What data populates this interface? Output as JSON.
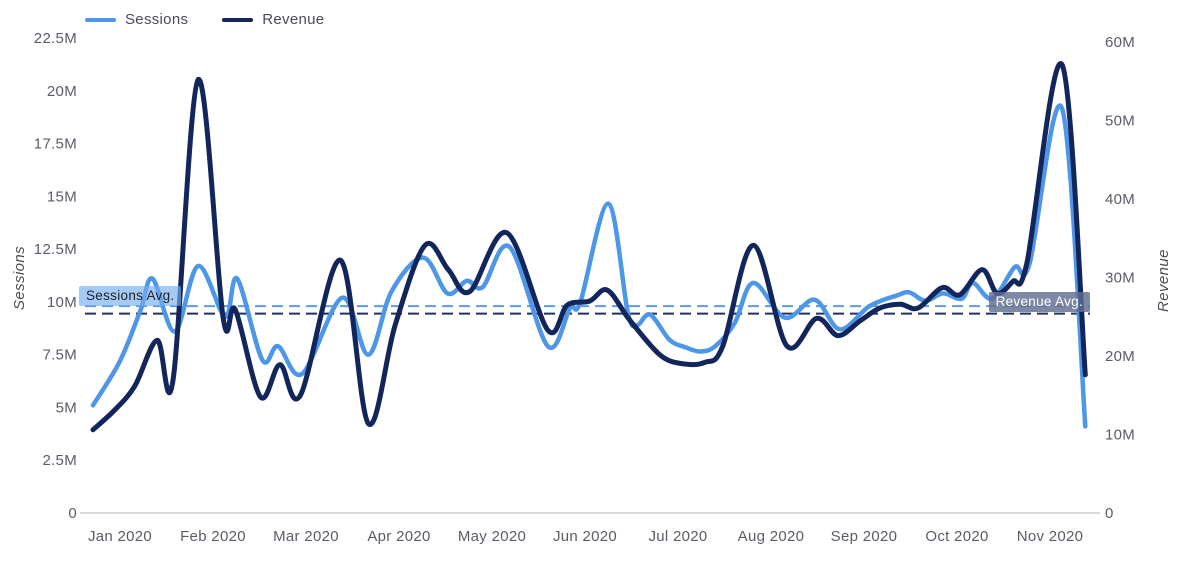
{
  "annotations": {
    "sessions_avg_label": "Sessions Avg.",
    "revenue_avg_label": "Revenue Avg."
  },
  "chart_data": {
    "type": "line",
    "title": "",
    "x_axis": {
      "labels": [
        "Jan 2020",
        "Feb 2020",
        "Mar 2020",
        "Apr 2020",
        "May 2020",
        "Jun 2020",
        "Jul 2020",
        "Aug 2020",
        "Sep 2020",
        "Oct 2020",
        "Nov 2020"
      ],
      "t_unit": "months offset from Jan 2020 tick"
    },
    "left_axis": {
      "title": "Sessions",
      "unit": "M",
      "max": 22.5,
      "ticks": [
        {
          "label": "0",
          "v": 0
        },
        {
          "label": "2.5M",
          "v": 2.5
        },
        {
          "label": "5M",
          "v": 5
        },
        {
          "label": "7.5M",
          "v": 7.5
        },
        {
          "label": "10M",
          "v": 10
        },
        {
          "label": "12.5M",
          "v": 12.5
        },
        {
          "label": "15M",
          "v": 15
        },
        {
          "label": "17.5M",
          "v": 17.5
        },
        {
          "label": "20M",
          "v": 20
        },
        {
          "label": "22.5M",
          "v": 22.5
        }
      ]
    },
    "right_axis": {
      "title": "Revenue",
      "unit": "M",
      "max": 60,
      "ticks": [
        {
          "label": "0",
          "v": 0
        },
        {
          "label": "10M",
          "v": 10
        },
        {
          "label": "20M",
          "v": 20
        },
        {
          "label": "30M",
          "v": 30
        },
        {
          "label": "40M",
          "v": 40
        },
        {
          "label": "50M",
          "v": 50
        },
        {
          "label": "60M",
          "v": 60
        }
      ]
    },
    "averages": {
      "sessions_avg_m": 9.8,
      "revenue_avg_m": 25.4
    },
    "colors": {
      "sessions": "#4D96E8",
      "revenue": "#13265C",
      "sessions_avg_line": "#5B9BE6",
      "revenue_avg_line": "#1C3263",
      "axis_text": "#5B5B66",
      "baseline": "#D9D9DE"
    },
    "legend_position": "top-left",
    "grid": false,
    "series": [
      {
        "name": "Sessions",
        "axis": "left",
        "unit": "millions of sessions",
        "points": [
          {
            "t": -0.29,
            "v": 5.1
          },
          {
            "t": 0.0,
            "v": 7.2
          },
          {
            "t": 0.22,
            "v": 9.6
          },
          {
            "t": 0.35,
            "v": 11.1
          },
          {
            "t": 0.59,
            "v": 8.6
          },
          {
            "t": 0.84,
            "v": 11.7
          },
          {
            "t": 1.13,
            "v": 9.3
          },
          {
            "t": 1.26,
            "v": 11.1
          },
          {
            "t": 1.53,
            "v": 7.25
          },
          {
            "t": 1.7,
            "v": 7.9
          },
          {
            "t": 1.96,
            "v": 6.6
          },
          {
            "t": 2.39,
            "v": 10.2
          },
          {
            "t": 2.67,
            "v": 7.5
          },
          {
            "t": 2.92,
            "v": 10.5
          },
          {
            "t": 3.26,
            "v": 12.1
          },
          {
            "t": 3.52,
            "v": 10.4
          },
          {
            "t": 3.73,
            "v": 11.0
          },
          {
            "t": 3.9,
            "v": 10.7
          },
          {
            "t": 4.19,
            "v": 12.6
          },
          {
            "t": 4.6,
            "v": 7.9
          },
          {
            "t": 4.84,
            "v": 9.7
          },
          {
            "t": 4.95,
            "v": 10.0
          },
          {
            "t": 5.25,
            "v": 14.65
          },
          {
            "t": 5.46,
            "v": 9.5
          },
          {
            "t": 5.56,
            "v": 8.9
          },
          {
            "t": 5.7,
            "v": 9.4
          },
          {
            "t": 5.91,
            "v": 8.2
          },
          {
            "t": 6.08,
            "v": 7.85
          },
          {
            "t": 6.24,
            "v": 7.65
          },
          {
            "t": 6.4,
            "v": 7.9
          },
          {
            "t": 6.61,
            "v": 9.0
          },
          {
            "t": 6.81,
            "v": 10.9
          },
          {
            "t": 7.15,
            "v": 9.25
          },
          {
            "t": 7.47,
            "v": 10.1
          },
          {
            "t": 7.74,
            "v": 8.7
          },
          {
            "t": 8.06,
            "v": 9.8
          },
          {
            "t": 8.35,
            "v": 10.3
          },
          {
            "t": 8.49,
            "v": 10.45
          },
          {
            "t": 8.66,
            "v": 10.05
          },
          {
            "t": 8.85,
            "v": 10.4
          },
          {
            "t": 9.05,
            "v": 10.15
          },
          {
            "t": 9.17,
            "v": 10.9
          },
          {
            "t": 9.38,
            "v": 10.15
          },
          {
            "t": 9.62,
            "v": 11.65
          },
          {
            "t": 9.78,
            "v": 11.8
          },
          {
            "t": 10.13,
            "v": 19.15
          },
          {
            "t": 10.38,
            "v": 4.1
          }
        ]
      },
      {
        "name": "Revenue",
        "axis": "right",
        "unit": "millions of revenue",
        "points": [
          {
            "t": -0.29,
            "v": 10.6
          },
          {
            "t": -0.05,
            "v": 13.2
          },
          {
            "t": 0.16,
            "v": 16.2
          },
          {
            "t": 0.4,
            "v": 22.0
          },
          {
            "t": 0.57,
            "v": 16.9
          },
          {
            "t": 0.84,
            "v": 55.2
          },
          {
            "t": 1.11,
            "v": 24.8
          },
          {
            "t": 1.24,
            "v": 25.9
          },
          {
            "t": 1.51,
            "v": 14.8
          },
          {
            "t": 1.72,
            "v": 18.9
          },
          {
            "t": 1.94,
            "v": 15.0
          },
          {
            "t": 2.37,
            "v": 32.2
          },
          {
            "t": 2.67,
            "v": 11.4
          },
          {
            "t": 2.96,
            "v": 24.0
          },
          {
            "t": 3.28,
            "v": 34.1
          },
          {
            "t": 3.53,
            "v": 31.0
          },
          {
            "t": 3.76,
            "v": 28.2
          },
          {
            "t": 4.16,
            "v": 35.7
          },
          {
            "t": 4.6,
            "v": 23.3
          },
          {
            "t": 4.81,
            "v": 26.5
          },
          {
            "t": 5.05,
            "v": 27.0
          },
          {
            "t": 5.24,
            "v": 28.4
          },
          {
            "t": 5.48,
            "v": 24.6
          },
          {
            "t": 5.81,
            "v": 20.1
          },
          {
            "t": 6.06,
            "v": 19.0
          },
          {
            "t": 6.29,
            "v": 19.2
          },
          {
            "t": 6.48,
            "v": 21.2
          },
          {
            "t": 6.81,
            "v": 34.1
          },
          {
            "t": 7.17,
            "v": 21.3
          },
          {
            "t": 7.49,
            "v": 24.8
          },
          {
            "t": 7.72,
            "v": 22.6
          },
          {
            "t": 7.96,
            "v": 24.5
          },
          {
            "t": 8.17,
            "v": 26.1
          },
          {
            "t": 8.39,
            "v": 26.6
          },
          {
            "t": 8.58,
            "v": 26.1
          },
          {
            "t": 8.84,
            "v": 28.7
          },
          {
            "t": 9.03,
            "v": 27.8
          },
          {
            "t": 9.27,
            "v": 31.0
          },
          {
            "t": 9.43,
            "v": 28.0
          },
          {
            "t": 9.6,
            "v": 29.5
          },
          {
            "t": 9.75,
            "v": 31.8
          },
          {
            "t": 10.13,
            "v": 57.1
          },
          {
            "t": 10.38,
            "v": 17.6
          }
        ]
      }
    ]
  }
}
